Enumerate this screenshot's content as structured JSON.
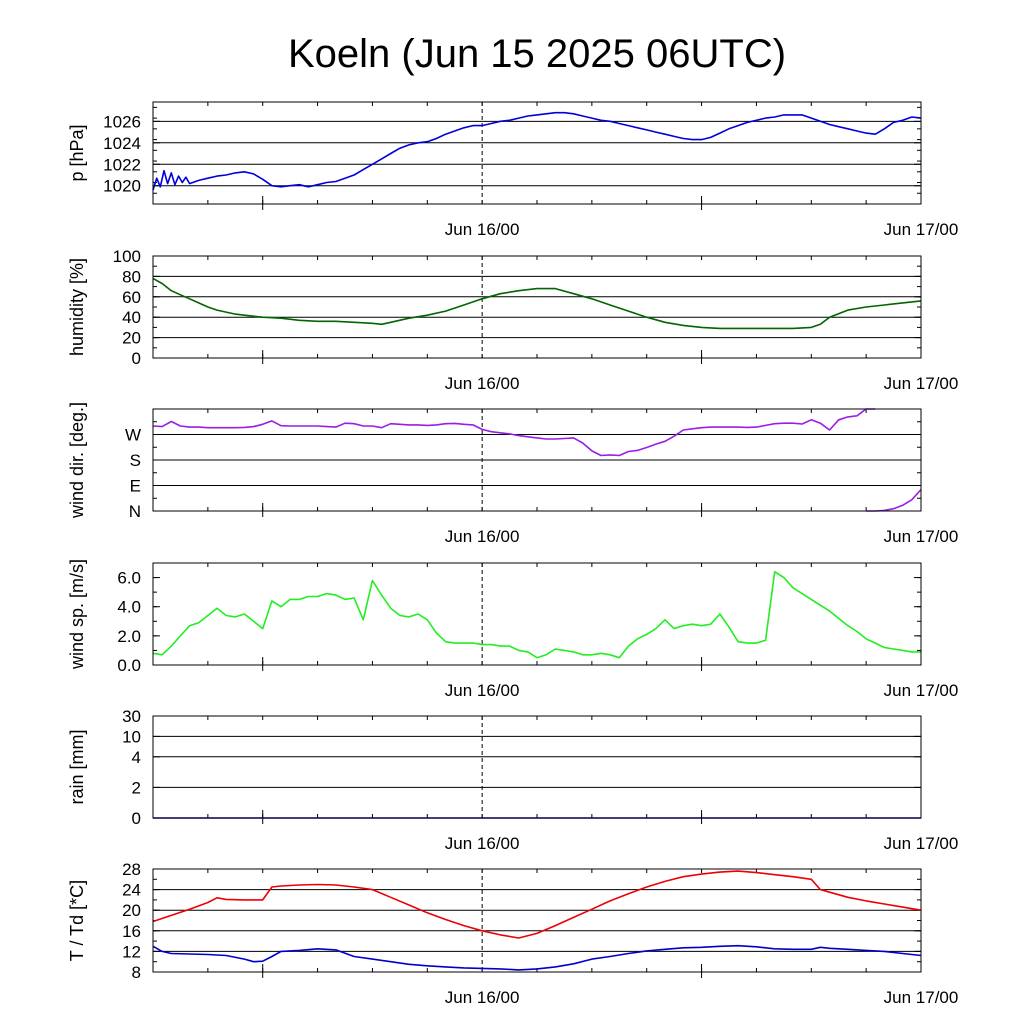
{
  "title": "Koeln (Jun 15 2025 06UTC)",
  "x_axis": {
    "labels": [
      "Jun 16/00",
      "Jun 17/00"
    ],
    "range_hours": [
      0,
      42
    ],
    "label_hours": [
      18,
      42
    ],
    "minor_tick_hours": [
      6,
      30
    ]
  },
  "colors": {
    "pressure": "#0000dd",
    "humidity": "#006600",
    "wind_dir": "#9a1ee6",
    "wind_speed": "#22ee22",
    "rain": "#0000dd",
    "temperature": "#ee0000",
    "dewpoint": "#0000cc"
  },
  "chart_data": [
    {
      "type": "line",
      "ylabel": "p [hPa]",
      "y_ticks": [
        1020,
        1022,
        1024,
        1026
      ],
      "y_tick_labels": [
        "1020",
        "1022",
        "1024",
        "1026"
      ],
      "ylim": [
        1018.3,
        1027.8
      ],
      "gridlines": [
        1020,
        1022,
        1024,
        1026
      ],
      "series": [
        {
          "color_key": "pressure",
          "x": [
            0,
            0.2,
            0.4,
            0.6,
            0.8,
            1,
            1.2,
            1.4,
            1.6,
            1.8,
            2,
            2.5,
            3,
            3.5,
            4,
            4.5,
            5,
            5.5,
            6,
            6.5,
            7,
            7.5,
            8,
            8.5,
            9,
            9.5,
            10,
            10.5,
            11,
            11.5,
            12,
            12.5,
            13,
            13.5,
            14,
            14.5,
            15,
            15.5,
            16,
            16.5,
            17,
            17.5,
            18,
            18.5,
            19,
            19.5,
            20,
            20.5,
            21,
            21.5,
            22,
            22.5,
            23,
            23.5,
            24,
            24.5,
            25,
            25.5,
            26,
            26.5,
            27,
            27.5,
            28,
            28.5,
            29,
            29.5,
            30,
            30.5,
            31,
            31.5,
            32,
            32.5,
            33,
            33.5,
            34,
            34.5,
            35,
            35.5,
            36,
            36.5,
            37,
            37.5,
            38,
            38.5,
            39,
            39.5,
            40,
            40.5,
            41,
            41.5,
            42
          ],
          "y": [
            1019.6,
            1020.7,
            1019.9,
            1021.4,
            1020.2,
            1021.2,
            1020.1,
            1020.9,
            1020.3,
            1020.8,
            1020.2,
            1020.5,
            1020.7,
            1020.9,
            1021.0,
            1021.2,
            1021.3,
            1021.1,
            1020.6,
            1020.0,
            1019.9,
            1020.0,
            1020.1,
            1019.9,
            1020.1,
            1020.3,
            1020.4,
            1020.7,
            1021.0,
            1021.5,
            1022.0,
            1022.5,
            1023.0,
            1023.5,
            1023.8,
            1024.0,
            1024.1,
            1024.4,
            1024.8,
            1025.1,
            1025.4,
            1025.6,
            1025.6,
            1025.8,
            1026.0,
            1026.1,
            1026.3,
            1026.5,
            1026.6,
            1026.7,
            1026.8,
            1026.8,
            1026.7,
            1026.5,
            1026.3,
            1026.1,
            1026.0,
            1025.8,
            1025.6,
            1025.4,
            1025.2,
            1025.0,
            1024.8,
            1024.6,
            1024.4,
            1024.3,
            1024.3,
            1024.5,
            1024.9,
            1025.3,
            1025.6,
            1025.9,
            1026.1,
            1026.3,
            1026.4,
            1026.6,
            1026.6,
            1026.6,
            1026.3,
            1026.0,
            1025.7,
            1025.5,
            1025.3,
            1025.1,
            1024.9,
            1024.8,
            1025.3,
            1025.9,
            1026.1,
            1026.4,
            1026.3
          ]
        }
      ]
    },
    {
      "type": "line",
      "ylabel": "humidity [%]",
      "y_ticks": [
        0,
        20,
        40,
        60,
        80,
        100
      ],
      "y_tick_labels": [
        "0",
        "20",
        "40",
        "60",
        "80",
        "100"
      ],
      "ylim": [
        0,
        100
      ],
      "gridlines": [
        20,
        40,
        60,
        80
      ],
      "series": [
        {
          "color_key": "humidity",
          "x": [
            0,
            0.5,
            1,
            1.5,
            2,
            2.5,
            3,
            3.5,
            4,
            4.5,
            5,
            5.5,
            6,
            7,
            8,
            9,
            10,
            11,
            12,
            12.5,
            13,
            14,
            15,
            16,
            17,
            18,
            19,
            20,
            21,
            22,
            23,
            24,
            25,
            26,
            27,
            28,
            29,
            30,
            31,
            32,
            33,
            34,
            35,
            36,
            36.5,
            37,
            38,
            39,
            40,
            41,
            42
          ],
          "y": [
            78,
            73,
            66,
            62,
            58,
            54,
            50,
            47,
            45,
            43,
            42,
            41,
            40,
            39,
            37,
            36,
            36,
            35,
            34,
            33,
            35,
            39,
            42,
            46,
            52,
            58,
            63,
            66,
            68,
            68,
            63,
            58,
            52,
            46,
            40,
            35,
            32,
            30,
            29,
            29,
            29,
            29,
            29,
            30,
            33,
            40,
            47,
            50,
            52,
            54,
            56
          ]
        }
      ]
    },
    {
      "type": "line",
      "ylabel": "wind dir. [deg.]",
      "y_ticks": [
        0,
        90,
        180,
        270
      ],
      "y_tick_labels": [
        "N",
        "E",
        "S",
        "W"
      ],
      "ylim": [
        0,
        360
      ],
      "gridlines": [
        90,
        180,
        270
      ],
      "series": [
        {
          "color_key": "wind_dir",
          "x": [
            0,
            0.5,
            1,
            1.5,
            2,
            2.5,
            3,
            3.5,
            4,
            4.5,
            5,
            5.5,
            6,
            6.5,
            7,
            7.5,
            8,
            8.5,
            9,
            9.5,
            10,
            10.5,
            11,
            11.5,
            12,
            12.5,
            13,
            13.5,
            14,
            14.5,
            15,
            15.5,
            16,
            16.5,
            17,
            17.5,
            18,
            18.5,
            19,
            19.5,
            20,
            20.5,
            21,
            21.5,
            22,
            22.5,
            23,
            23.5,
            24,
            24.5,
            25,
            25.5,
            26,
            26.5,
            27,
            27.5,
            28,
            28.5,
            29,
            29.5,
            30,
            30.5,
            31,
            31.5,
            32,
            32.5,
            33,
            33.5,
            34,
            34.5,
            35,
            35.5,
            36,
            36.5,
            37,
            37.5,
            38,
            38.5,
            39,
            39.5
          ],
          "y": [
            300,
            298,
            316,
            300,
            296,
            296,
            294,
            294,
            294,
            294,
            295,
            298,
            306,
            318,
            301,
            300,
            300,
            300,
            300,
            298,
            296,
            310,
            308,
            300,
            300,
            294,
            308,
            306,
            304,
            304,
            302,
            304,
            308,
            309,
            306,
            304,
            288,
            280,
            276,
            272,
            266,
            262,
            258,
            254,
            254,
            256,
            258,
            240,
            212,
            196,
            198,
            196,
            210,
            214,
            224,
            236,
            246,
            264,
            286,
            290,
            294,
            296,
            296,
            296,
            296,
            295,
            296,
            302,
            308,
            310,
            310,
            307,
            322,
            310,
            286,
            322,
            332,
            336,
            360,
            360
          ]
        },
        {
          "color_key": "wind_dir",
          "x": [
            39.0,
            39.5,
            40.0,
            40.5,
            41.0,
            41.5,
            42.0
          ],
          "y": [
            0,
            0,
            2,
            8,
            20,
            40,
            76
          ]
        }
      ]
    },
    {
      "type": "line",
      "ylabel": "wind sp. [m/s]",
      "y_ticks": [
        0,
        2,
        4,
        6
      ],
      "y_tick_labels": [
        "0.0",
        "2.0",
        "4.0",
        "6.0"
      ],
      "ylim": [
        0,
        7
      ],
      "gridlines": [],
      "series": [
        {
          "color_key": "wind_speed",
          "x": [
            0,
            0.5,
            1,
            1.5,
            2,
            2.5,
            3,
            3.5,
            4,
            4.5,
            5,
            5.5,
            6,
            6.5,
            7,
            7.5,
            8,
            8.5,
            9,
            9.5,
            10,
            10.5,
            11,
            11.5,
            12,
            12.5,
            13,
            13.5,
            14,
            14.5,
            15,
            15.5,
            16,
            16.5,
            17,
            17.5,
            18,
            18.5,
            19,
            19.5,
            20,
            20.5,
            21,
            21.5,
            22,
            22.5,
            23,
            23.5,
            24,
            24.5,
            25,
            25.5,
            26,
            26.5,
            27,
            27.5,
            28,
            28.5,
            29,
            29.5,
            30,
            30.5,
            31,
            31.5,
            32,
            32.5,
            33,
            33.5,
            34,
            34.5,
            35,
            35.5,
            36,
            36.5,
            37,
            37.5,
            38,
            38.5,
            39,
            39.5,
            40,
            40.5,
            41,
            41.5,
            42
          ],
          "y": [
            0.8,
            0.7,
            1.3,
            2.0,
            2.7,
            2.9,
            3.4,
            3.9,
            3.4,
            3.3,
            3.5,
            3.0,
            2.5,
            4.4,
            4.0,
            4.5,
            4.5,
            4.7,
            4.7,
            4.9,
            4.8,
            4.5,
            4.6,
            3.1,
            5.8,
            4.8,
            3.9,
            3.4,
            3.3,
            3.5,
            3.1,
            2.2,
            1.6,
            1.5,
            1.5,
            1.5,
            1.4,
            1.4,
            1.3,
            1.3,
            1.0,
            0.9,
            0.5,
            0.7,
            1.1,
            1.0,
            0.9,
            0.7,
            0.7,
            0.8,
            0.7,
            0.5,
            1.3,
            1.8,
            2.1,
            2.5,
            3.1,
            2.5,
            2.7,
            2.8,
            2.7,
            2.8,
            3.5,
            2.6,
            1.6,
            1.5,
            1.5,
            1.7,
            6.4,
            6.0,
            5.3,
            4.9,
            4.5,
            4.1,
            3.7,
            3.2,
            2.7,
            2.3,
            1.8,
            1.5,
            1.2,
            1.1,
            1.0,
            0.9,
            0.9
          ]
        }
      ]
    },
    {
      "type": "line",
      "ylabel": "rain [mm]",
      "y_ticks": [
        0,
        2,
        4,
        10,
        30
      ],
      "y_tick_labels": [
        "0",
        "2",
        "4",
        "10",
        "30"
      ],
      "y_tick_positions": [
        0,
        0.3,
        0.6,
        0.8,
        1.0
      ],
      "ylim": [
        0,
        1
      ],
      "gridlines": [
        0.3,
        0.6,
        0.8,
        1.0
      ],
      "series": [
        {
          "color_key": "rain",
          "x": [
            0,
            42
          ],
          "y": [
            0,
            0
          ]
        }
      ]
    },
    {
      "type": "line",
      "ylabel": "T / Td [*C]",
      "y_ticks": [
        8,
        12,
        16,
        20,
        24,
        28
      ],
      "y_tick_labels": [
        "8",
        "12",
        "16",
        "20",
        "24",
        "28"
      ],
      "ylim": [
        8,
        28
      ],
      "gridlines": [
        12,
        16,
        20,
        24,
        28
      ],
      "series": [
        {
          "color_key": "temperature",
          "x": [
            0,
            1,
            2,
            3,
            3.5,
            4,
            5,
            6,
            6.5,
            7,
            8,
            9,
            10,
            11,
            12,
            13,
            14,
            15,
            16,
            17,
            18,
            19,
            20,
            21,
            22,
            23,
            24,
            25,
            26,
            27,
            28,
            29,
            30,
            31,
            32,
            33,
            34,
            35,
            36,
            36.5,
            37,
            38,
            39,
            40,
            41,
            42
          ],
          "y": [
            17.8,
            19.0,
            20.2,
            21.5,
            22.4,
            22.1,
            22.0,
            22.0,
            24.5,
            24.7,
            24.9,
            25.0,
            24.9,
            24.5,
            24.0,
            22.5,
            21.0,
            19.5,
            18.2,
            17.0,
            16.0,
            15.2,
            14.6,
            15.5,
            17.0,
            18.6,
            20.2,
            21.8,
            23.2,
            24.5,
            25.6,
            26.5,
            27.0,
            27.4,
            27.6,
            27.3,
            26.9,
            26.5,
            26.0,
            24.0,
            23.5,
            22.5,
            21.8,
            21.2,
            20.6,
            20.0
          ]
        },
        {
          "color_key": "dewpoint",
          "x": [
            0,
            0.5,
            1,
            2,
            3,
            4,
            5,
            5.5,
            6,
            6.5,
            7,
            8,
            9,
            10,
            11,
            12,
            13,
            14,
            15,
            16,
            17,
            18,
            19,
            20,
            21,
            22,
            23,
            24,
            25,
            26,
            27,
            28,
            29,
            30,
            31,
            32,
            33,
            34,
            35,
            36,
            36.5,
            37,
            38,
            39,
            40,
            41,
            42
          ],
          "y": [
            13.0,
            12.0,
            11.6,
            11.5,
            11.4,
            11.2,
            10.5,
            10.0,
            10.1,
            11.0,
            12.0,
            12.2,
            12.5,
            12.3,
            11.0,
            10.5,
            10.0,
            9.5,
            9.2,
            9.0,
            8.8,
            8.7,
            8.6,
            8.4,
            8.6,
            9.0,
            9.6,
            10.5,
            11.0,
            11.6,
            12.1,
            12.4,
            12.7,
            12.8,
            13.0,
            13.1,
            12.9,
            12.5,
            12.4,
            12.4,
            12.8,
            12.6,
            12.4,
            12.2,
            12.0,
            11.6,
            11.2
          ]
        }
      ]
    }
  ]
}
